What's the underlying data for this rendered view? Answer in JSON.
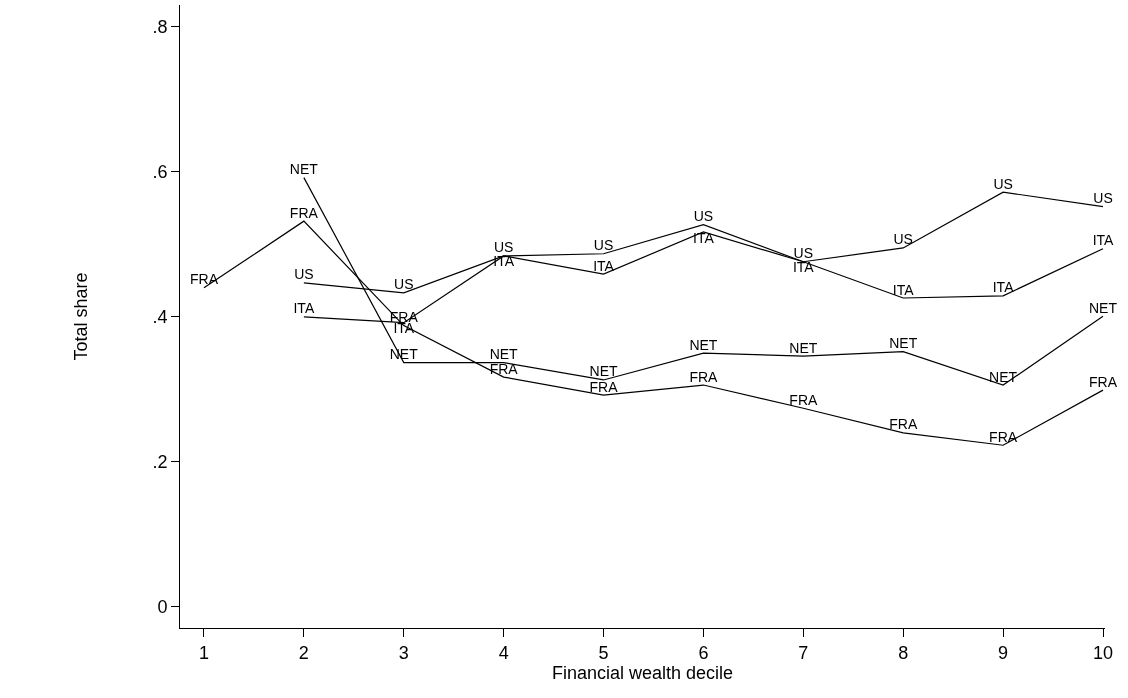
{
  "chart_data": {
    "type": "line",
    "xlabel": "Financial wealth decile",
    "ylabel": "Total share",
    "xlim": [
      0.76,
      10.02
    ],
    "xticks": [
      1,
      2,
      3,
      4,
      5,
      6,
      7,
      8,
      9,
      10
    ],
    "ylim": [
      -0.029,
      0.83
    ],
    "yticks": [
      {
        "value": 0,
        "label": "0"
      },
      {
        "value": 0.2,
        "label": ".2"
      },
      {
        "value": 0.4,
        "label": ".4"
      },
      {
        "value": 0.6,
        "label": ".6"
      },
      {
        "value": 0.8,
        "label": ".8"
      }
    ],
    "grid": false,
    "legend": false,
    "marker": "none",
    "line_style": "solid",
    "series": [
      {
        "name": "FRA",
        "color": "#000000",
        "x": [
          1,
          2,
          3,
          4,
          5,
          6,
          7,
          8,
          9,
          10
        ],
        "values": [
          0.44,
          0.532,
          0.388,
          0.317,
          0.292,
          0.306,
          0.274,
          0.24,
          0.223,
          0.299
        ]
      },
      {
        "name": "NET",
        "color": "#000000",
        "x": [
          2,
          3,
          4,
          5,
          6,
          7,
          8,
          9,
          10
        ],
        "values": [
          0.592,
          0.337,
          0.337,
          0.313,
          0.35,
          0.346,
          0.352,
          0.306,
          0.401
        ]
      },
      {
        "name": "US",
        "color": "#000000",
        "x": [
          2,
          3,
          4,
          5,
          6,
          7,
          8,
          9,
          10
        ],
        "values": [
          0.447,
          0.433,
          0.484,
          0.487,
          0.527,
          0.476,
          0.495,
          0.572,
          0.552
        ]
      },
      {
        "name": "ITA",
        "color": "#000000",
        "x": [
          2,
          3,
          4,
          5,
          6,
          7,
          8,
          9,
          10
        ],
        "values": [
          0.4,
          0.392,
          0.484,
          0.459,
          0.517,
          0.476,
          0.426,
          0.429,
          0.494
        ]
      }
    ]
  }
}
